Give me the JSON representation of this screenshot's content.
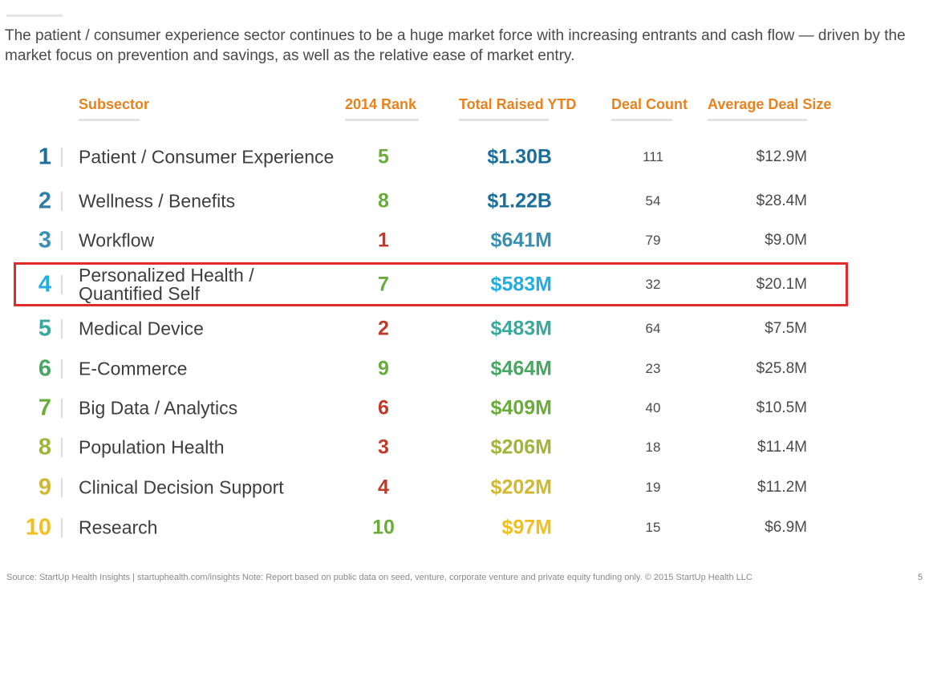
{
  "intro": "The patient / consumer experience sector continues to be a huge market force with increasing entrants  and cash flow — driven by the market focus on prevention and savings, as well as the relative ease of market entry.",
  "headers": {
    "subsector": "Subsector",
    "rank": "2014 Rank",
    "total": "Total Raised YTD",
    "count": "Deal Count",
    "avg": "Average Deal Size"
  },
  "colors": {
    "header": "#e8821e",
    "highlight_border": "#e02b2b",
    "rank_green": "#6aac3a",
    "rank_red": "#c0392b"
  },
  "rows": [
    {
      "num": "1",
      "subsector": "Patient / Consumer Experience",
      "rank": "5",
      "total": "$1.30B",
      "count": "111",
      "avg": "$12.9M",
      "num_color": "#1b6f9a",
      "rank_color": "#6aac3a",
      "total_color": "#1b6f9a"
    },
    {
      "num": "2",
      "subsector": "Wellness / Benefits",
      "rank": "8",
      "total": "$1.22B",
      "count": "54",
      "avg": "$28.4M",
      "num_color": "#2f7fa6",
      "rank_color": "#6aac3a",
      "total_color": "#1b6f9a"
    },
    {
      "num": "3",
      "subsector": "Workflow",
      "rank": "1",
      "total": "$641M",
      "count": "79",
      "avg": "$9.0M",
      "num_color": "#3a8fb3",
      "rank_color": "#c0392b",
      "total_color": "#3a8fb3"
    },
    {
      "num": "4",
      "subsector": "Personalized Health / Quantified Self",
      "rank": "7",
      "total": "$583M",
      "count": "32",
      "avg": "$20.1M",
      "num_color": "#22aee0",
      "rank_color": "#6aac3a",
      "total_color": "#22aee0"
    },
    {
      "num": "5",
      "subsector": "Medical Device",
      "rank": "2",
      "total": "$483M",
      "count": "64",
      "avg": "$7.5M",
      "num_color": "#3aa89a",
      "rank_color": "#c0392b",
      "total_color": "#3aa89a"
    },
    {
      "num": "6",
      "subsector": "E-Commerce",
      "rank": "9",
      "total": "$464M",
      "count": "23",
      "avg": "$25.8M",
      "num_color": "#4aa664",
      "rank_color": "#6aac3a",
      "total_color": "#4aa664"
    },
    {
      "num": "7",
      "subsector": "Big Data / Analytics",
      "rank": "6",
      "total": "$409M",
      "count": "40",
      "avg": "$10.5M",
      "num_color": "#6aac3a",
      "rank_color": "#c0392b",
      "total_color": "#6aac3a"
    },
    {
      "num": "8",
      "subsector": "Population Health",
      "rank": "3",
      "total": "$206M",
      "count": "18",
      "avg": "$11.4M",
      "num_color": "#a0b53a",
      "rank_color": "#c0392b",
      "total_color": "#a0b53a"
    },
    {
      "num": "9",
      "subsector": "Clinical Decision Support",
      "rank": "4",
      "total": "$202M",
      "count": "19",
      "avg": "$11.2M",
      "num_color": "#d0b830",
      "rank_color": "#c0392b",
      "total_color": "#d0b830"
    },
    {
      "num": "10",
      "subsector": "Research",
      "rank": "10",
      "total": "$97M",
      "count": "15",
      "avg": "$6.9M",
      "num_color": "#f0c020",
      "rank_color": "#6aac3a",
      "total_color": "#f0c020"
    }
  ],
  "highlighted_row": "4",
  "source": "Source: StartUp Health Insights | startuphealth.com/insights Note: Report based on public data on seed, venture, corporate venture and private equity funding only. © 2015 StartUp Health LLC",
  "page_number": "5"
}
